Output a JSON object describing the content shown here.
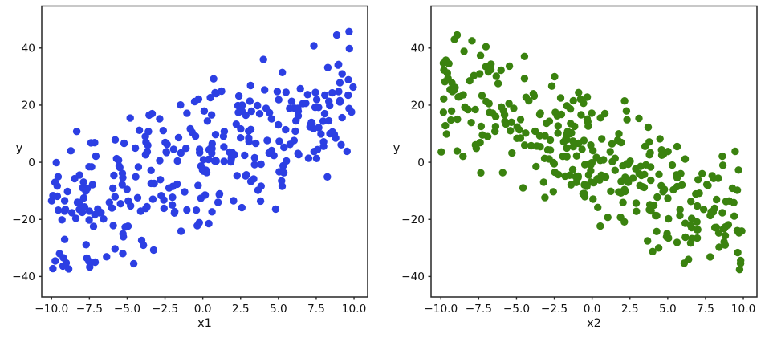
{
  "figure": {
    "background": "#ffffff",
    "spine_color": "#262626",
    "tick_color": "#262626",
    "text_color": "#111111"
  },
  "chart_data": [
    {
      "type": "scatter",
      "title": "",
      "xlabel": "x1",
      "ylabel": "y",
      "color": "#2c3fe3",
      "marker": "circle",
      "n_points": 310,
      "x_range": [
        -10,
        10
      ],
      "trend": {
        "direction": "positive",
        "slope": 2.05,
        "intercept": 1.0
      },
      "noise": {
        "type": "gaussian",
        "sigma": 13,
        "truncate_sigma": 2.1
      },
      "seed": 20,
      "xlim": [
        -10.65,
        10.9
      ],
      "ylim": [
        -47.2,
        54.7
      ],
      "x_ticks": [
        -10.0,
        -7.5,
        -5.0,
        -2.5,
        0.0,
        2.5,
        5.0,
        7.5,
        10.0
      ],
      "x_tick_labels": [
        "−10.0",
        "−7.5",
        "−5.0",
        "−2.5",
        "0.0",
        "2.5",
        "5.0",
        "7.5",
        "10.0"
      ],
      "y_ticks": [
        -40,
        -20,
        0,
        20,
        40
      ],
      "y_tick_labels": [
        "−40",
        "−20",
        "0",
        "20",
        "40"
      ],
      "grid": false,
      "legend": null,
      "y_data_range_approx": [
        -44,
        50
      ]
    },
    {
      "type": "scatter",
      "title": "",
      "xlabel": "x2",
      "ylabel": "y",
      "color": "#3a820f",
      "marker": "circle",
      "n_points": 330,
      "x_range": [
        -10,
        10
      ],
      "trend": {
        "direction": "negative",
        "slope": -2.35,
        "intercept": 2.0
      },
      "noise": {
        "type": "gaussian",
        "sigma": 12,
        "truncate_sigma": 2.1
      },
      "seed": 77,
      "xlim": [
        -10.65,
        10.9
      ],
      "ylim": [
        -47.2,
        54.7
      ],
      "x_ticks": [
        -10.0,
        -7.5,
        -5.0,
        -2.5,
        0.0,
        2.5,
        5.0,
        7.5,
        10.0
      ],
      "x_tick_labels": [
        "−10.0",
        "−7.5",
        "−5.0",
        "−2.5",
        "0.0",
        "2.5",
        "5.0",
        "7.5",
        "10.0"
      ],
      "y_ticks": [
        -40,
        -20,
        0,
        20,
        40
      ],
      "y_tick_labels": [
        "−40",
        "−20",
        "0",
        "20",
        "40"
      ],
      "grid": false,
      "legend": null,
      "y_data_range_approx": [
        -43,
        50
      ]
    }
  ]
}
